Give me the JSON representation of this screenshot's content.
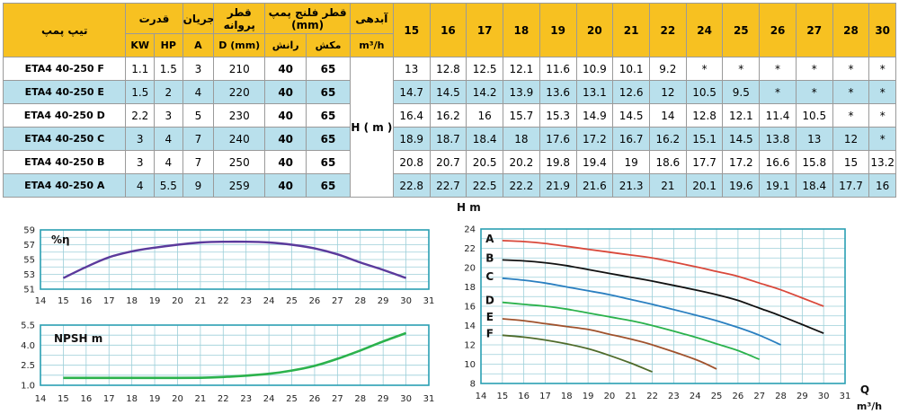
{
  "table": {
    "headers": {
      "model": "تیپ پمپ",
      "power": "قدرت",
      "current": "جریان",
      "impeller": "قطر پروانه",
      "flange": "قطر فلنج پمپ (mm)",
      "flow": "آبدهی",
      "flow_unit": "m³/h",
      "kw": "KW",
      "hp": "HP",
      "amp": "A",
      "d_mm": "D (mm)",
      "discharge": "رانش",
      "suction": "مکش",
      "head": "H ( m )"
    },
    "flows": [
      "15",
      "16",
      "17",
      "18",
      "19",
      "20",
      "21",
      "22",
      "24",
      "25",
      "26",
      "27",
      "28",
      "30"
    ],
    "rows": [
      {
        "model": "ETA4 40-250 F",
        "kw": "1.1",
        "hp": "1.5",
        "a": "3",
        "d": "210",
        "discharge": "40",
        "suction": "65",
        "heads": [
          "13",
          "12.8",
          "12.5",
          "12.1",
          "11.6",
          "10.9",
          "10.1",
          "9.2",
          "*",
          "*",
          "*",
          "*",
          "*",
          "*"
        ]
      },
      {
        "model": "ETA4 40-250 E",
        "kw": "1.5",
        "hp": "2",
        "a": "4",
        "d": "220",
        "discharge": "40",
        "suction": "65",
        "heads": [
          "14.7",
          "14.5",
          "14.2",
          "13.9",
          "13.6",
          "13.1",
          "12.6",
          "12",
          "10.5",
          "9.5",
          "*",
          "*",
          "*",
          "*"
        ]
      },
      {
        "model": "ETA4 40-250 D",
        "kw": "2.2",
        "hp": "3",
        "a": "5",
        "d": "230",
        "discharge": "40",
        "suction": "65",
        "heads": [
          "16.4",
          "16.2",
          "16",
          "15.7",
          "15.3",
          "14.9",
          "14.5",
          "14",
          "12.8",
          "12.1",
          "11.4",
          "10.5",
          "*",
          "*"
        ]
      },
      {
        "model": "ETA4 40-250 C",
        "kw": "3",
        "hp": "4",
        "a": "7",
        "d": "240",
        "discharge": "40",
        "suction": "65",
        "heads": [
          "18.9",
          "18.7",
          "18.4",
          "18",
          "17.6",
          "17.2",
          "16.7",
          "16.2",
          "15.1",
          "14.5",
          "13.8",
          "13",
          "12",
          "*"
        ]
      },
      {
        "model": "ETA4 40-250 B",
        "kw": "3",
        "hp": "4",
        "a": "7",
        "d": "250",
        "discharge": "40",
        "suction": "65",
        "heads": [
          "20.8",
          "20.7",
          "20.5",
          "20.2",
          "19.8",
          "19.4",
          "19",
          "18.6",
          "17.7",
          "17.2",
          "16.6",
          "15.8",
          "15",
          "13.2"
        ]
      },
      {
        "model": "ETA4 40-250 A",
        "kw": "4",
        "hp": "5.5",
        "a": "9",
        "d": "259",
        "discharge": "40",
        "suction": "65",
        "heads": [
          "22.8",
          "22.7",
          "22.5",
          "22.2",
          "21.9",
          "21.6",
          "21.3",
          "21",
          "20.1",
          "19.6",
          "19.1",
          "18.4",
          "17.7",
          "16"
        ]
      }
    ]
  },
  "chart_data": [
    {
      "type": "line",
      "title": "%η",
      "xlim": [
        14,
        31
      ],
      "ylim": [
        51,
        59
      ],
      "xticks": [
        "14",
        "15",
        "16",
        "17",
        "18",
        "19",
        "20",
        "21",
        "22",
        "23",
        "24",
        "25",
        "26",
        "27",
        "28",
        "29",
        "30",
        "31"
      ],
      "yticks": [
        "51",
        "53",
        "55",
        "57",
        "59"
      ],
      "grid": true,
      "line_color": "#5b3a9c",
      "series": [
        {
          "x": [
            15,
            16,
            17,
            18,
            19,
            20,
            21,
            22,
            23,
            24,
            25,
            26,
            27,
            28,
            29,
            30
          ],
          "y": [
            52.5,
            54.0,
            55.3,
            56.1,
            56.6,
            57.0,
            57.3,
            57.4,
            57.4,
            57.3,
            57.0,
            56.5,
            55.7,
            54.6,
            53.6,
            52.5
          ]
        }
      ]
    },
    {
      "type": "line",
      "title": "NPSH m",
      "xlim": [
        14,
        31
      ],
      "ylim": [
        1.0,
        5.5
      ],
      "xticks": [
        "14",
        "15",
        "16",
        "17",
        "18",
        "19",
        "20",
        "21",
        "22",
        "23",
        "24",
        "25",
        "26",
        "27",
        "28",
        "29",
        "30",
        "31"
      ],
      "yticks": [
        "1.0",
        "2.5",
        "4.0",
        "5.5"
      ],
      "yticks_values": [
        1.0,
        2.5,
        4.0,
        5.5
      ],
      "grid": true,
      "line_color": "#2bb24c",
      "series": [
        {
          "x": [
            15,
            16,
            17,
            18,
            19,
            20,
            21,
            22,
            23,
            24,
            25,
            26,
            27,
            28,
            29,
            30
          ],
          "y": [
            1.55,
            1.55,
            1.55,
            1.55,
            1.55,
            1.55,
            1.56,
            1.62,
            1.72,
            1.86,
            2.1,
            2.45,
            2.98,
            3.6,
            4.28,
            4.9
          ]
        }
      ]
    },
    {
      "type": "line",
      "ylabel": "H m",
      "xlabel": "Q",
      "xlabel_unit": "m³/h",
      "xlim": [
        14,
        31
      ],
      "ylim": [
        8,
        24
      ],
      "xticks": [
        "14",
        "15",
        "16",
        "17",
        "18",
        "19",
        "20",
        "21",
        "22",
        "23",
        "24",
        "25",
        "26",
        "27",
        "28",
        "29",
        "30",
        "31"
      ],
      "yticks": [
        "8",
        "10",
        "12",
        "14",
        "16",
        "18",
        "20",
        "22",
        "24"
      ],
      "grid": true,
      "series": [
        {
          "name": "A",
          "color": "#d9483a",
          "x": [
            15,
            16,
            17,
            18,
            19,
            20,
            21,
            22,
            24,
            25,
            26,
            27,
            28,
            30
          ],
          "y": [
            22.8,
            22.7,
            22.5,
            22.2,
            21.9,
            21.6,
            21.3,
            21,
            20.1,
            19.6,
            19.1,
            18.4,
            17.7,
            16
          ]
        },
        {
          "name": "B",
          "color": "#111111",
          "x": [
            15,
            16,
            17,
            18,
            19,
            20,
            21,
            22,
            24,
            25,
            26,
            27,
            28,
            30
          ],
          "y": [
            20.8,
            20.7,
            20.5,
            20.2,
            19.8,
            19.4,
            19,
            18.6,
            17.7,
            17.2,
            16.6,
            15.8,
            15,
            13.2
          ]
        },
        {
          "name": "C",
          "color": "#2a7fc0",
          "x": [
            15,
            16,
            17,
            18,
            19,
            20,
            21,
            22,
            24,
            25,
            26,
            27,
            28
          ],
          "y": [
            18.9,
            18.7,
            18.4,
            18,
            17.6,
            17.2,
            16.7,
            16.2,
            15.1,
            14.5,
            13.8,
            13,
            12
          ]
        },
        {
          "name": "D",
          "color": "#2bb24c",
          "x": [
            15,
            16,
            17,
            18,
            19,
            20,
            21,
            22,
            24,
            25,
            26,
            27
          ],
          "y": [
            16.4,
            16.2,
            16,
            15.7,
            15.3,
            14.9,
            14.5,
            14,
            12.8,
            12.1,
            11.4,
            10.5
          ]
        },
        {
          "name": "E",
          "color": "#a0522d",
          "x": [
            15,
            16,
            17,
            18,
            19,
            20,
            21,
            22,
            24,
            25
          ],
          "y": [
            14.7,
            14.5,
            14.2,
            13.9,
            13.6,
            13.1,
            12.6,
            12,
            10.5,
            9.5
          ]
        },
        {
          "name": "F",
          "color": "#4f6b2b",
          "x": [
            15,
            16,
            17,
            18,
            19,
            20,
            21,
            22
          ],
          "y": [
            13,
            12.8,
            12.5,
            12.1,
            11.6,
            10.9,
            10.1,
            9.2
          ]
        }
      ]
    }
  ]
}
